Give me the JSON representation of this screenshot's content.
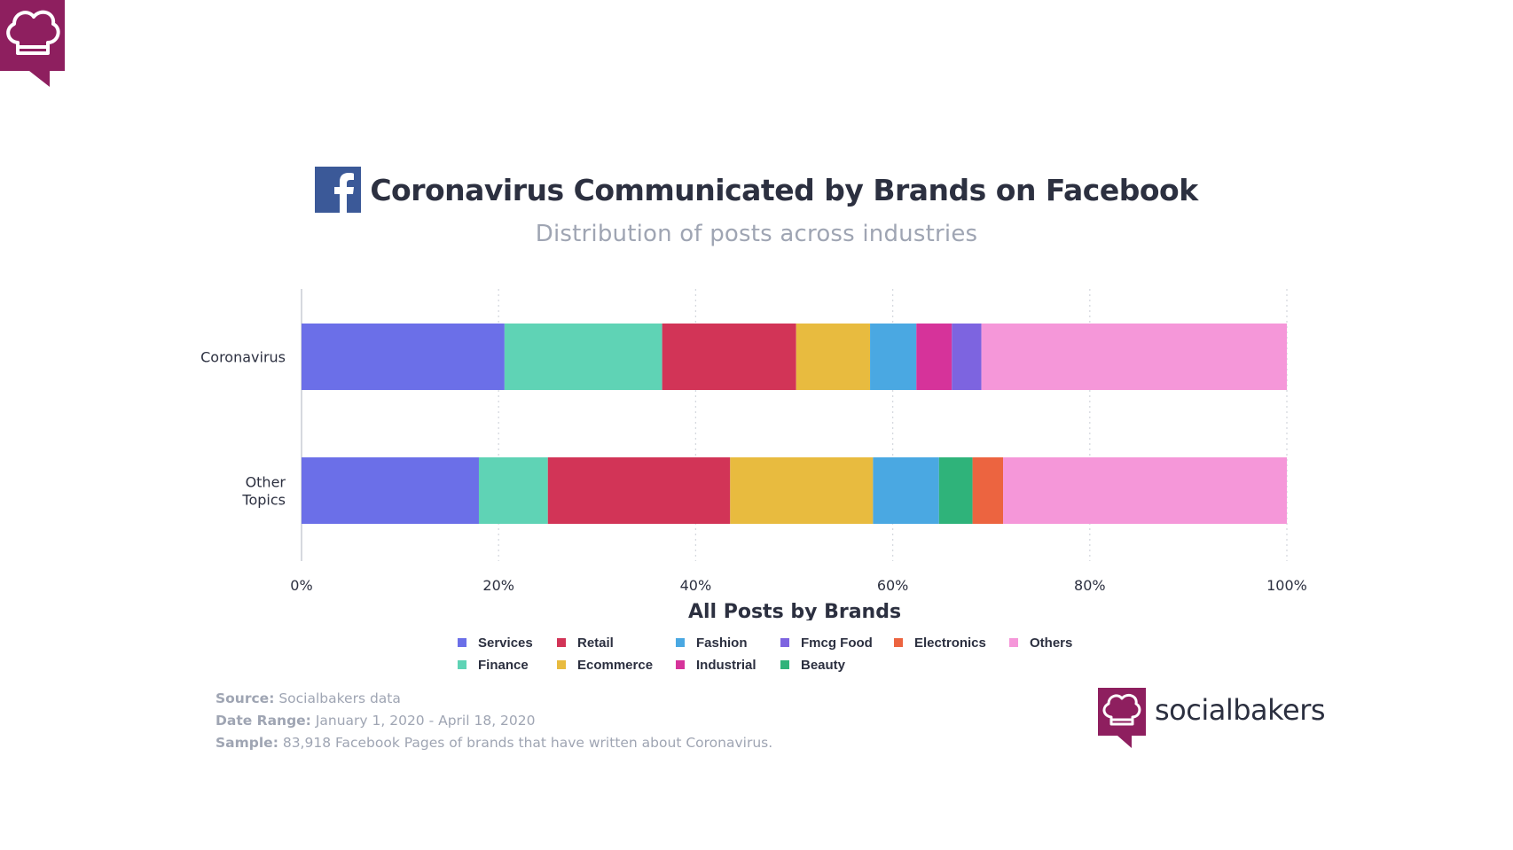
{
  "page": {
    "title": "Coronavirus Communicated by Brands on Facebook",
    "subtitle": "Distribution of posts across industries",
    "brand_name": "socialbakers",
    "icons": {
      "corner": "socialbakers-chef-hat-icon",
      "title": "facebook-icon",
      "brand": "socialbakers-chef-hat-icon"
    },
    "brand_color": "#8e1f5f",
    "facebook_color": "#3b5998"
  },
  "footnotes": [
    {
      "key": "Source:",
      "value": " Socialbakers data"
    },
    {
      "key": "Date Range:",
      "value": " January 1, 2020 - April 18, 2020"
    },
    {
      "key": "Sample:",
      "value": " 83,918 Facebook Pages of brands that have written about Coronavirus."
    }
  ],
  "legend": [
    {
      "name": "Services",
      "color": "#6b6fe8"
    },
    {
      "name": "Retail",
      "color": "#d23457"
    },
    {
      "name": "Fashion",
      "color": "#4aa8e2"
    },
    {
      "name": "Fmcg Food",
      "color": "#7d64e0"
    },
    {
      "name": "Electronics",
      "color": "#ec6440"
    },
    {
      "name": "Others",
      "color": "#f597d9"
    },
    {
      "name": "Finance",
      "color": "#5fd3b5"
    },
    {
      "name": "Ecommerce",
      "color": "#e8bb3f"
    },
    {
      "name": "Industrial",
      "color": "#d6339a"
    },
    {
      "name": "Beauty",
      "color": "#2fb37a"
    }
  ],
  "chart_data": {
    "type": "bar",
    "orientation": "horizontal",
    "stacked": true,
    "categories": [
      "Coronavirus",
      "Other\nTopics"
    ],
    "xlabel": "All Posts by Brands",
    "xlim": [
      0,
      100
    ],
    "xticks": [
      0,
      20,
      40,
      60,
      80,
      100
    ],
    "xtick_labels": [
      "0%",
      "20%",
      "40%",
      "60%",
      "80%",
      "100%"
    ],
    "grid": "vertical-dotted",
    "legend_position": "bottom",
    "series": [
      {
        "name": "Services",
        "color": "#6b6fe8",
        "values": [
          20.6,
          18.0
        ]
      },
      {
        "name": "Finance",
        "color": "#5fd3b5",
        "values": [
          16.0,
          7.0
        ]
      },
      {
        "name": "Retail",
        "color": "#d23457",
        "values": [
          13.6,
          18.5
        ]
      },
      {
        "name": "Ecommerce",
        "color": "#e8bb3f",
        "values": [
          7.5,
          14.5
        ]
      },
      {
        "name": "Fashion",
        "color": "#4aa8e2",
        "values": [
          4.7,
          6.7
        ]
      },
      {
        "name": "Industrial",
        "color": "#d6339a",
        "values": [
          3.6,
          0
        ]
      },
      {
        "name": "Fmcg Food",
        "color": "#7d64e0",
        "values": [
          3.0,
          0
        ]
      },
      {
        "name": "Beauty",
        "color": "#2fb37a",
        "values": [
          0,
          3.4
        ]
      },
      {
        "name": "Electronics",
        "color": "#ec6440",
        "values": [
          0,
          3.1
        ]
      },
      {
        "name": "Others",
        "color": "#f597d9",
        "values": [
          31.0,
          28.8
        ]
      }
    ]
  }
}
